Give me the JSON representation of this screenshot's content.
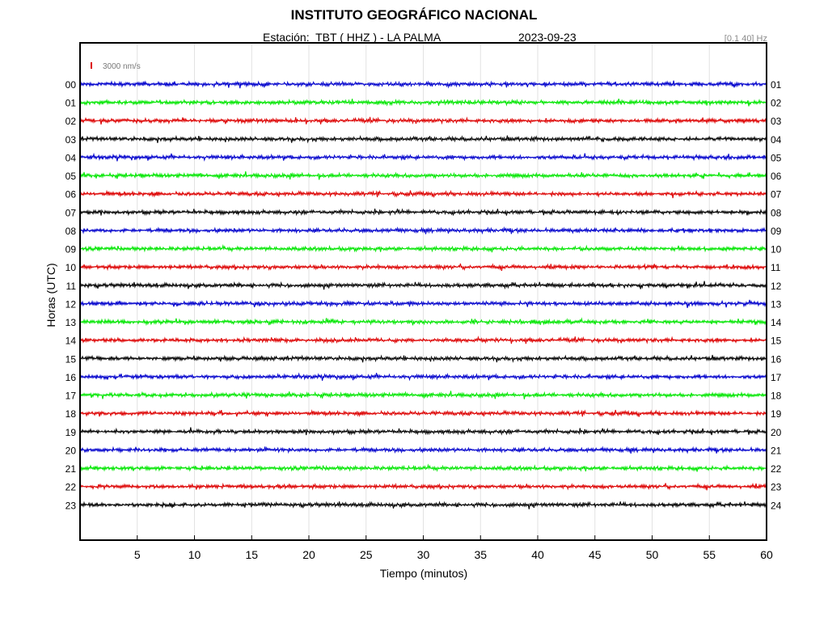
{
  "header": {
    "title": "INSTITUTO GEOGRÁFICO NACIONAL",
    "station": "Estación:  TBT ( HHZ ) - LA PALMA",
    "date": "2023-09-23",
    "band": "[0.1 40] Hz"
  },
  "chart_data": {
    "type": "line",
    "title": "INSTITUTO GEOGRÁFICO NACIONAL",
    "xlabel": "Tiempo (minutos)",
    "ylabel": "Horas (UTC)",
    "xlim": [
      0,
      60
    ],
    "x_ticks": [
      "5",
      "10",
      "15",
      "20",
      "25",
      "30",
      "35",
      "40",
      "45",
      "50",
      "55",
      "60"
    ],
    "left_labels": [
      "00",
      "01",
      "02",
      "03",
      "04",
      "05",
      "06",
      "07",
      "08",
      "09",
      "10",
      "11",
      "12",
      "13",
      "14",
      "15",
      "16",
      "17",
      "18",
      "19",
      "20",
      "21",
      "22",
      "23"
    ],
    "right_labels": [
      "01",
      "02",
      "03",
      "04",
      "05",
      "06",
      "07",
      "08",
      "09",
      "10",
      "11",
      "12",
      "13",
      "14",
      "15",
      "16",
      "17",
      "18",
      "19",
      "20",
      "21",
      "22",
      "23",
      "24"
    ],
    "trace_colors": [
      "#0000cc",
      "#00e600",
      "#dd0000",
      "#000000"
    ],
    "scale_label": "3000 nm/s",
    "scale_color": "#dd0000",
    "grid": true
  }
}
